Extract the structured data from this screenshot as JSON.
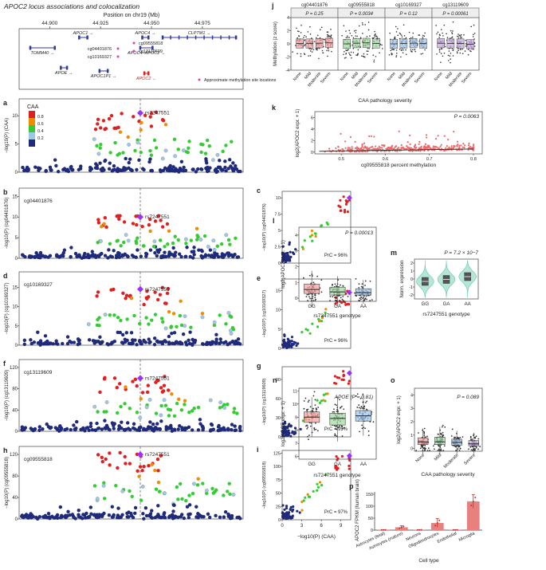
{
  "chart_data": {
    "type": "multi-panel",
    "title": "APOC2 locus associations and colocalization",
    "colors": {
      "navy": "#1f2a7a",
      "blue": "#2e3b9c",
      "red": "#e02020",
      "orange": "#f08c00",
      "green": "#33cc33",
      "ltblue": "#9ec8e8",
      "yellow": "#e8d200",
      "purple": "#9b30ff",
      "magenta": "#e040b0",
      "teal": "#5ec8a8",
      "box_red": "#f2a0a0",
      "box_green": "#9fd89f",
      "box_blue": "#a0c4ec",
      "box_purple": "#c5a8e0",
      "grid": "#dddddd"
    },
    "genes": {
      "axis_title": "Position on chr19 (Mb)",
      "ticks": [
        "44.900",
        "44.925",
        "44.950",
        "44.975"
      ],
      "tick_values": [
        44.9,
        44.925,
        44.95,
        44.975
      ],
      "xlim": [
        44.885,
        44.995
      ],
      "items": [
        {
          "name": "TOMM40 →",
          "start": 44.89,
          "end": 44.903,
          "row": 1
        },
        {
          "name": "APOE →",
          "start": 44.905,
          "end": 44.909,
          "row": 2
        },
        {
          "name": "APOC1 →",
          "start": 44.914,
          "end": 44.919,
          "row": 0
        },
        {
          "name": "APOC4 →",
          "start": 44.945,
          "end": 44.949,
          "row": 0
        },
        {
          "name": "CLPTM1 →",
          "start": 44.955,
          "end": 44.992,
          "row": 0
        },
        {
          "name": "APOC4–APOC2 →",
          "start": 44.944,
          "end": 44.951,
          "row": 1
        },
        {
          "name": "APOC1P1 →",
          "start": 44.924,
          "end": 44.929,
          "row": 2
        },
        {
          "name": "APOC2 ←",
          "start": 44.946,
          "end": 44.949,
          "row": 3
        }
      ],
      "cpgs": [
        "cg04401876",
        "cg10169327",
        "cg13119609",
        "cg09555818"
      ],
      "legend": "Approximate methylation site locations"
    },
    "ld_legend": {
      "title": "CAA",
      "ticks": [
        "0.8",
        "0.6",
        "0.4",
        "0.2"
      ]
    },
    "locus_panels": [
      {
        "label": "a",
        "ylabel": "−log10(P) (CAA)",
        "yticks": [
          0,
          5,
          10
        ],
        "ymax": 13,
        "top_snp": "rs7247551",
        "top_y": 10.5,
        "tag": ""
      },
      {
        "label": "b",
        "ylabel": "−log10(P) (cg04401876)",
        "yticks": [
          0,
          5,
          10,
          15
        ],
        "ymax": 17,
        "top_snp": "rs7247551",
        "top_y": 10.0,
        "tag": "cg04401876"
      },
      {
        "label": "d",
        "ylabel": "−log10(P) (cg10169327)",
        "yticks": [
          0,
          5,
          10,
          15
        ],
        "ymax": 19,
        "top_snp": "rs7247551",
        "top_y": 14.5,
        "tag": "cg10169327"
      },
      {
        "label": "f",
        "ylabel": "−log10(P) (cg13119609)",
        "yticks": [
          0,
          40,
          80,
          120
        ],
        "ymax": 135,
        "top_snp": "rs7247551",
        "top_y": 100,
        "tag": "cg13119609"
      },
      {
        "label": "h",
        "ylabel": "−log10(P) (cg09555818)",
        "yticks": [
          0,
          40,
          80,
          120
        ],
        "ymax": 135,
        "top_snp": "rs7247551",
        "top_y": 120,
        "tag": "cg09555818"
      }
    ],
    "coloc_panels": [
      {
        "label": "c",
        "ylabel": "−log10(P) (cg04401876)",
        "yticks": [
          0.0,
          2.5,
          5.0,
          7.5,
          10.0
        ],
        "ymax": 11,
        "prc": "PrC = 96%",
        "top": 10.0
      },
      {
        "label": "e",
        "ylabel": "−log10(P) (cg10169327)",
        "yticks": [
          0,
          5,
          10,
          15
        ],
        "ymax": 18,
        "prc": "PrC = 96%",
        "top": 14.5
      },
      {
        "label": "g",
        "ylabel": "−log10(P) (cg13119609)",
        "yticks": [
          0,
          30,
          60,
          90
        ],
        "ymax": 110,
        "prc": "PrC = 99%",
        "top": 100
      },
      {
        "label": "i",
        "ylabel": "−log10(P) (cg09555818)",
        "yticks": [
          0,
          25,
          50,
          75,
          100,
          125
        ],
        "ymax": 130,
        "prc": "PrC = 97%",
        "top": 120
      }
    ],
    "coloc_xlabel": "−log10(P) (CAA)",
    "coloc_xticks": [
      0,
      3,
      6,
      9
    ],
    "panel_j": {
      "label": "j",
      "groups": [
        {
          "cpg": "cg04401876",
          "p": "P = 0.25",
          "medians": [
            0.05,
            0.05,
            0.1,
            0.15
          ]
        },
        {
          "cpg": "cg09555818",
          "p": "P = 0.0034",
          "medians": [
            0.0,
            0.1,
            0.15,
            0.05
          ]
        },
        {
          "cpg": "cg10169327",
          "p": "P = 0.12",
          "medians": [
            0.0,
            0.05,
            0.1,
            0.05
          ]
        },
        {
          "cpg": "cg13119609",
          "p": "P = 0.00061",
          "medians": [
            0.1,
            0.05,
            0.05,
            -0.05
          ]
        }
      ],
      "categories": [
        "None",
        "Mild",
        "Moderate",
        "Severe"
      ],
      "ylabel": "Methylation (z score)",
      "yticks": [
        -4,
        -2,
        0,
        2,
        4
      ],
      "ylim": [
        -4,
        4
      ],
      "xlabel": "CAA pathology severity"
    },
    "panel_k": {
      "label": "k",
      "p": "P = 0.0063",
      "xlabel": "cg09555818 percent methylation",
      "ylabel": "log2(APOC2 expr. + 1)",
      "xticks": [
        0.5,
        0.6,
        0.7,
        0.8
      ],
      "yticks": [
        0,
        2,
        4,
        6
      ],
      "xlim": [
        0.44,
        0.82
      ],
      "ylim": [
        -0.3,
        7
      ],
      "trend": [
        [
          0.45,
          0.15
        ],
        [
          0.8,
          0.55
        ]
      ]
    },
    "panel_l": {
      "label": "l",
      "p": "P = 0.00013",
      "categories": [
        "GG",
        "GA",
        "AA"
      ],
      "medians": [
        0.55,
        0.4,
        0.35
      ],
      "q1": [
        0.3,
        0.2,
        0.2
      ],
      "q3": [
        0.9,
        0.7,
        0.6
      ],
      "xlabel": "rs7247551 genotype",
      "ylabel": "log2(APOC2 expr. + 1)",
      "yticks": [
        0,
        1,
        2,
        3,
        4
      ],
      "ylim": [
        -0.2,
        4.5
      ]
    },
    "panel_m": {
      "label": "m",
      "p": "P = 7.2 × 10−7",
      "categories": [
        "GG",
        "GA",
        "AA"
      ],
      "medians": [
        -0.3,
        -0.05,
        0.3
      ],
      "xlabel": "rs7247551 genotype",
      "ylabel": "Norm. expression",
      "yticks": [
        -2,
        -1,
        0,
        1,
        2
      ],
      "ylim": [
        -2.5,
        2.5
      ]
    },
    "panel_n": {
      "label": "n",
      "p": "APOE (P = 0.81)",
      "categories": [
        "GG",
        "GA",
        "AA"
      ],
      "medians": [
        9.0,
        8.9,
        9.1
      ],
      "q1": [
        8.6,
        8.4,
        8.7
      ],
      "q3": [
        9.4,
        9.3,
        9.5
      ],
      "xlabel": "rs7247551 genotype",
      "ylabel": "log2(APOE expr. + 1)",
      "yticks": [
        6,
        7,
        8,
        9,
        10,
        11
      ],
      "ylim": [
        5.8,
        11.2
      ]
    },
    "panel_o": {
      "label": "o",
      "p": "P = 0.089",
      "categories": [
        "None",
        "Mild",
        "Moderate",
        "Severe"
      ],
      "medians": [
        0.5,
        0.5,
        0.45,
        0.35
      ],
      "q1": [
        0.3,
        0.3,
        0.25,
        0.2
      ],
      "q3": [
        0.8,
        0.85,
        0.7,
        0.6
      ],
      "xlabel": "CAA pathology severity",
      "ylabel": "log2(APOC2 expr. + 1)",
      "yticks": [
        0,
        1,
        2,
        3,
        4
      ],
      "ylim": [
        -0.2,
        4.5
      ]
    },
    "panel_p": {
      "label": "p",
      "categories": [
        "Astrocytes (fetal)",
        "Astrocytes (mature)",
        "Neurons",
        "Oligodendrocytes",
        "Endothelial",
        "Microglia"
      ],
      "values": [
        1,
        12,
        1,
        30,
        1,
        120
      ],
      "errors": [
        0.5,
        6,
        0.5,
        18,
        0.5,
        28
      ],
      "ylabel": "APOC2 FPKM (human brain)",
      "xlabel": "Cell type",
      "yticks": [
        0,
        50,
        100,
        150
      ],
      "ylim": [
        0,
        160
      ]
    }
  }
}
